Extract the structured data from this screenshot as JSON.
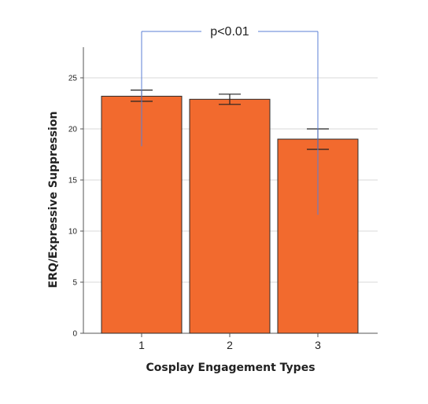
{
  "chart_data": {
    "type": "bar",
    "categories": [
      "1",
      "2",
      "3"
    ],
    "values": [
      23.2,
      22.9,
      19.0
    ],
    "error_bars": [
      {
        "low": 22.7,
        "high": 23.8
      },
      {
        "low": 22.4,
        "high": 23.4
      },
      {
        "low": 18.0,
        "high": 20.0
      }
    ],
    "xlabel": "Cosplay Engagement Types",
    "ylabel": "ERQ/Expressive Suppression",
    "ylim": [
      0,
      28
    ],
    "yticks": [
      0,
      5,
      10,
      15,
      20,
      25
    ],
    "grid": true,
    "significance": {
      "label": "p<0.01",
      "from_category": "1",
      "to_category": "3",
      "left_drop_to": 18.3,
      "right_drop_to": 11.6
    },
    "colors": {
      "bar": "#f26a2e",
      "bar_edge": "#2b2b2b",
      "bracket": "#5b7fd6",
      "grid": "#d9d9d9",
      "axis": "#555555"
    }
  }
}
